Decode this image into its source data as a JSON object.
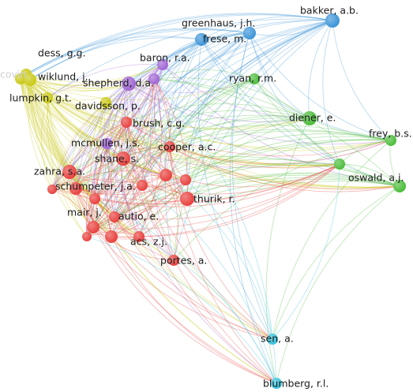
{
  "nodes": [
    {
      "label": "greenhaus, j.h.",
      "color": "#3d95d8"
    },
    {
      "label": "bakker, a.b.",
      "color": "#3d95d8"
    },
    {
      "label": "frese, m.",
      "color": "#3d95d8"
    },
    {
      "label": "dess, g.g.",
      "color": "#c9c916"
    },
    {
      "label": "covin",
      "color": "#c9c916"
    },
    {
      "label": "wiklund, j.",
      "color": "#c9c916"
    },
    {
      "label": "baron, r.a.",
      "color": "#a066d4"
    },
    {
      "label": "shepherd, d.a.",
      "color": "#a066d4"
    },
    {
      "label": "ryan, r.m.",
      "color": "#4cbd3b"
    },
    {
      "label": "lumpkin, g.t.",
      "color": "#c9c916"
    },
    {
      "label": "davidsson, p.",
      "color": "#c9c916"
    },
    {
      "label": "diener, e.",
      "color": "#4cbd3b"
    },
    {
      "label": "brush, c.g.",
      "color": "#e8423f"
    },
    {
      "label": "mcmullen, j.s.",
      "color": "#a066d4"
    },
    {
      "label": "cooper, a.c.",
      "color": "#e8423f"
    },
    {
      "label": "shane, s.",
      "color": "#e8423f"
    },
    {
      "label": "frey, b.s.",
      "color": "#4cbd3b"
    },
    {
      "label": "oswald, a.j.",
      "color": "#4cbd3b"
    },
    {
      "label": "zahra, s.a.",
      "color": "#e8423f"
    },
    {
      "label": "schumpeter, j.a.",
      "color": "#e8423f"
    },
    {
      "label": "thurik, r.",
      "color": "#e8423f"
    },
    {
      "label": "mair, j.",
      "color": "#e8423f"
    },
    {
      "label": "autio, e.",
      "color": "#e8423f"
    },
    {
      "label": "acs, z.j.",
      "color": "#e8423f"
    },
    {
      "label": "portes, a.",
      "color": "#e8423f"
    },
    {
      "label": "sen, a.",
      "color": "#37c3dd"
    },
    {
      "label": "blumberg, r.l.",
      "color": "#37c3dd"
    }
  ]
}
